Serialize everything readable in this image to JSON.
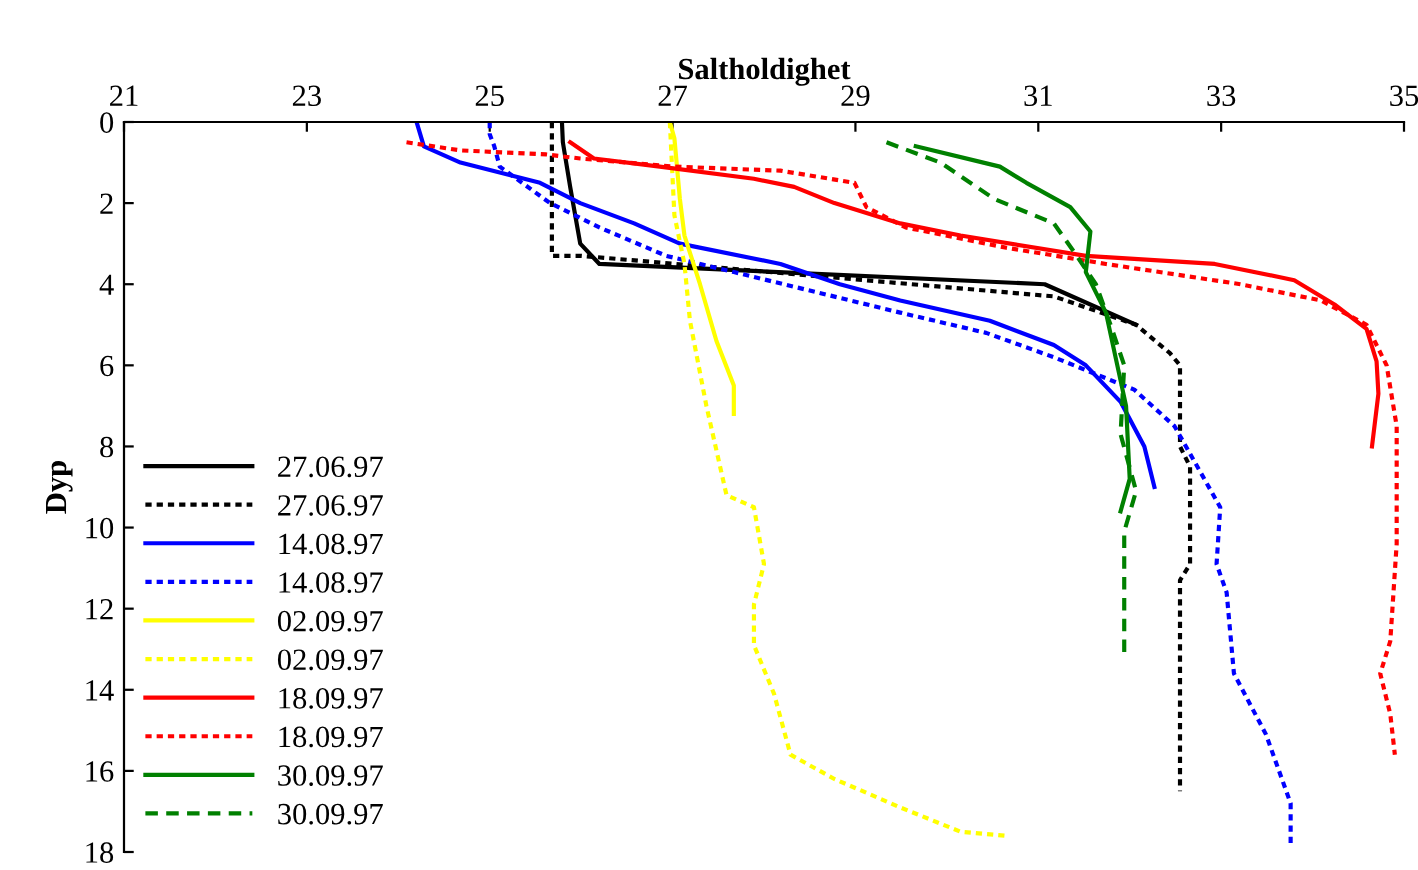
{
  "chart_data": {
    "type": "line",
    "xlabel": "Saltholdighet",
    "ylabel": "Dyp",
    "xlim": [
      21,
      35
    ],
    "xticks": [
      21,
      23,
      25,
      27,
      29,
      31,
      33,
      35
    ],
    "ylim": [
      18,
      0
    ],
    "yticks": [
      0,
      2,
      4,
      6,
      8,
      10,
      12,
      14,
      16,
      18
    ],
    "grid": false,
    "legend": "bottom left",
    "series": [
      {
        "name": "27.06.97",
        "color": "#000000",
        "line_style": "solid",
        "x": [
          25.79,
          25.8,
          25.88,
          25.99,
          26.2,
          31.07,
          32.07
        ],
        "values": [
          0,
          0.5,
          1.6,
          3.0,
          3.5,
          4.0,
          5.0
        ]
      },
      {
        "name": "27.06.97",
        "color": "#000000",
        "line_style": "dotted",
        "x": [
          25.68,
          25.68,
          26.0,
          31.17,
          32.07,
          32.44,
          32.55,
          32.55,
          32.66,
          32.66,
          32.55,
          32.55
        ],
        "values": [
          0,
          3.3,
          3.3,
          4.3,
          5.0,
          5.7,
          6.0,
          8.0,
          8.5,
          10.9,
          11.3,
          16.5
        ]
      },
      {
        "name": "14.08.97",
        "color": "#0000ff",
        "line_style": "solid",
        "x": [
          24.2,
          24.28,
          24.68,
          25.55,
          25.99,
          26.58,
          27.08,
          28.18,
          28.83,
          29.49,
          30.47,
          31.17,
          31.52,
          31.9,
          32.16,
          32.27
        ],
        "values": [
          0,
          0.6,
          1.0,
          1.5,
          2.0,
          2.5,
          3.0,
          3.5,
          4.0,
          4.4,
          4.9,
          5.5,
          6.0,
          6.9,
          8.0,
          9.0
        ]
      },
      {
        "name": "14.08.97",
        "color": "#0000ff",
        "line_style": "dotted",
        "x": [
          25.0,
          25.0,
          25.05,
          25.11,
          25.66,
          26.2,
          26.93,
          27.67,
          29.49,
          30.43,
          31.17,
          32.05,
          32.49,
          32.99,
          32.95,
          33.06,
          33.14,
          33.49,
          33.76,
          33.76
        ],
        "values": [
          0,
          0.3,
          0.6,
          1.1,
          2.0,
          2.6,
          3.3,
          3.7,
          4.7,
          5.2,
          5.8,
          6.6,
          7.5,
          9.5,
          10.9,
          11.6,
          13.6,
          15.1,
          16.8,
          17.9
        ]
      },
      {
        "name": "02.09.97",
        "color": "#ffff00",
        "line_style": "solid",
        "x": [
          26.97,
          27.02,
          27.08,
          27.13,
          27.3,
          27.48,
          27.67,
          27.67
        ],
        "values": [
          0,
          0.4,
          1.9,
          2.8,
          4.0,
          5.4,
          6.5,
          7.2
        ]
      },
      {
        "name": "02.09.97",
        "color": "#ffff00",
        "line_style": "dotted",
        "x": [
          26.97,
          27.02,
          27.13,
          27.19,
          27.37,
          27.59,
          27.89,
          28.0,
          27.89,
          27.89,
          28.11,
          28.29,
          28.77,
          29.49,
          30.15,
          30.65
        ],
        "values": [
          0,
          2.3,
          3.5,
          4.9,
          7.0,
          9.2,
          9.5,
          10.9,
          11.9,
          12.9,
          14.1,
          15.6,
          16.2,
          16.9,
          17.5,
          17.6
        ]
      },
      {
        "name": "18.09.97",
        "color": "#ff0000",
        "line_style": "solid",
        "x": [
          25.88,
          26.14,
          26.86,
          27.89,
          28.33,
          28.77,
          29.49,
          30.15,
          31.52,
          32.93,
          33.8,
          34.24,
          34.59,
          34.7,
          34.72,
          34.65
        ],
        "values": [
          0.5,
          0.9,
          1.1,
          1.4,
          1.6,
          2.0,
          2.5,
          2.8,
          3.3,
          3.5,
          3.9,
          4.5,
          5.1,
          5.9,
          6.7,
          8.0
        ]
      },
      {
        "name": "18.09.97",
        "color": "#ff0000",
        "line_style": "dotted",
        "x": [
          24.09,
          24.68,
          25.62,
          25.99,
          27.02,
          28.18,
          28.99,
          29.12,
          29.55,
          30.65,
          31.74,
          33.21,
          34.09,
          34.59,
          34.81,
          34.92,
          34.92,
          34.85,
          34.74,
          34.85,
          34.9
        ],
        "values": [
          0.5,
          0.7,
          0.8,
          0.9,
          1.1,
          1.2,
          1.5,
          2.1,
          2.6,
          3.1,
          3.5,
          4.0,
          4.4,
          5.0,
          6.0,
          7.5,
          10.4,
          12.8,
          13.6,
          14.6,
          15.6
        ]
      },
      {
        "name": "30.09.97",
        "color": "#008000",
        "line_style": "solid",
        "x": [
          29.66,
          30.58,
          30.87,
          31.35,
          31.57,
          31.52,
          31.74,
          31.96,
          32.0,
          31.9
        ],
        "values": [
          0.6,
          1.1,
          1.5,
          2.1,
          2.7,
          3.7,
          4.7,
          7.0,
          8.8,
          9.6
        ]
      },
      {
        "name": "30.09.97",
        "color": "#008000",
        "line_style": "dashed",
        "x": [
          29.34,
          29.93,
          30.52,
          31.17,
          31.39,
          31.63,
          31.79,
          31.94,
          31.9,
          32.07,
          31.94,
          31.94
        ],
        "values": [
          0.5,
          1.0,
          1.9,
          2.5,
          3.2,
          4.0,
          5.0,
          6.0,
          7.7,
          9.1,
          10.1,
          13.1
        ]
      }
    ]
  }
}
